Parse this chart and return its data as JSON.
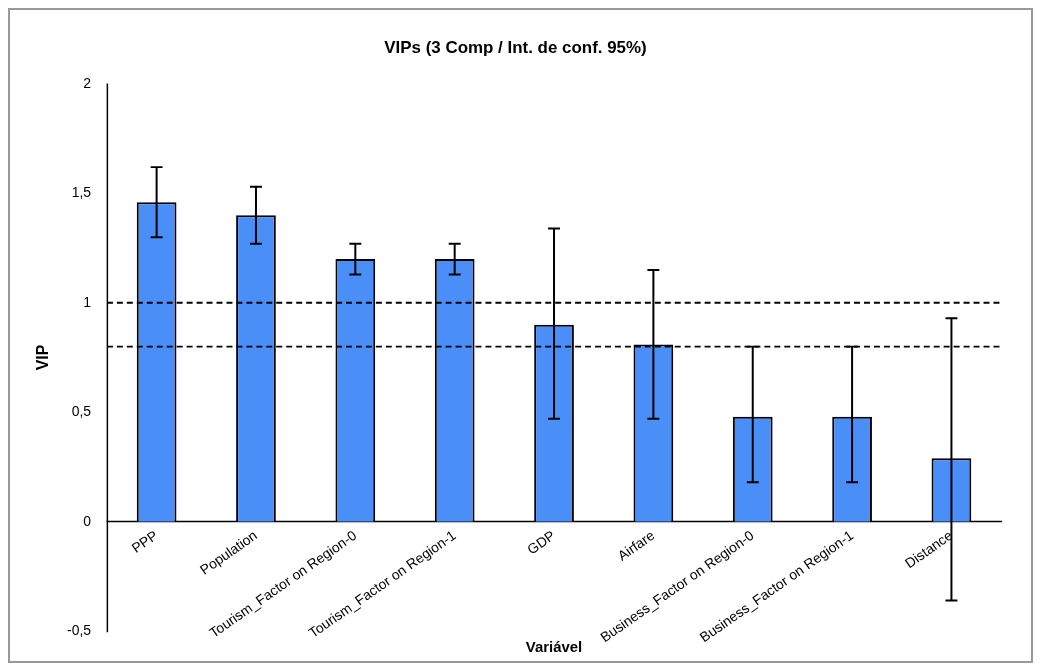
{
  "chart_data": {
    "type": "bar",
    "title": "VIPs (3 Comp / Int. de conf. 95%)",
    "xlabel": "Variável",
    "ylabel": "VIP",
    "categories": [
      "PPP",
      "Population",
      "Tourism_Factor on Region-0",
      "Tourism_Factor on Region-1",
      "GDP",
      "Airfare",
      "Business_Factor on Region-0",
      "Business_Factor on Region-1",
      "Distance"
    ],
    "values": [
      1.46,
      1.4,
      1.2,
      1.2,
      0.9,
      0.81,
      0.48,
      0.48,
      0.29
    ],
    "errors": [
      [
        1.3,
        1.62
      ],
      [
        1.27,
        1.53
      ],
      [
        1.13,
        1.27
      ],
      [
        1.13,
        1.27
      ],
      [
        0.47,
        1.34
      ],
      [
        0.47,
        1.15
      ],
      [
        0.18,
        0.8
      ],
      [
        0.18,
        0.8
      ],
      [
        -0.36,
        0.93
      ]
    ],
    "color": "#4a8ff8",
    "ylim": [
      -0.5,
      2
    ],
    "yticks": [
      {
        "value": -0.5,
        "label": "-0,5"
      },
      0,
      {
        "value": 0.5,
        "label": "0,5"
      },
      1,
      {
        "value": 1.5,
        "label": "1,5"
      },
      2
    ],
    "ref_lines": [
      {
        "axis": "y",
        "value": 1,
        "color": "#000000",
        "line_style": "dashed"
      },
      {
        "axis": "y",
        "value": 0.8,
        "color": "#000000",
        "line_style": "dashed"
      }
    ],
    "grid": false,
    "legend": false
  }
}
